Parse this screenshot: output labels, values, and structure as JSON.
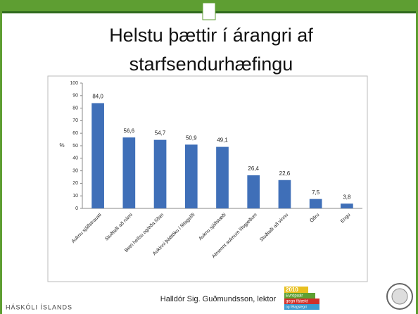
{
  "header": {
    "title_line1": "Helstu þættir í árangri af",
    "title_line2": "starfsendurhæfingu"
  },
  "chart_data": {
    "type": "bar",
    "y_label": "%",
    "categories": [
      "Auknu sjálfstrausti",
      "Stuðlaði að námi",
      "Betri heilsu og/eða líðan",
      "Aukinni þátttöku í félagslífi",
      "Auknu sjálfstæði",
      "Almennt auknum lífsgæðum",
      "Stuðlaði að vinnu",
      "Öðru",
      "Engu"
    ],
    "values": [
      84.0,
      56.6,
      54.7,
      50.9,
      49.1,
      26.4,
      22.6,
      7.5,
      3.8
    ],
    "value_labels": [
      "84,0",
      "56,6",
      "54,7",
      "50,9",
      "49,1",
      "26,4",
      "22,6",
      "7,5",
      "3,8"
    ],
    "color": "#3f6fb8",
    "ylim": [
      0,
      100
    ],
    "yticks": [
      0,
      10,
      20,
      30,
      40,
      50,
      60,
      70,
      80,
      90,
      100
    ],
    "grid": false
  },
  "footer": {
    "author": "Halldór Sig. Guðmundsson, lektor",
    "university": "HÁSKÓLI ÍSLANDS",
    "logo_year": "2010",
    "logo_line1": "Evrópuár",
    "logo_line2": "gegn fátækt",
    "logo_line3": "og félagslegri"
  }
}
